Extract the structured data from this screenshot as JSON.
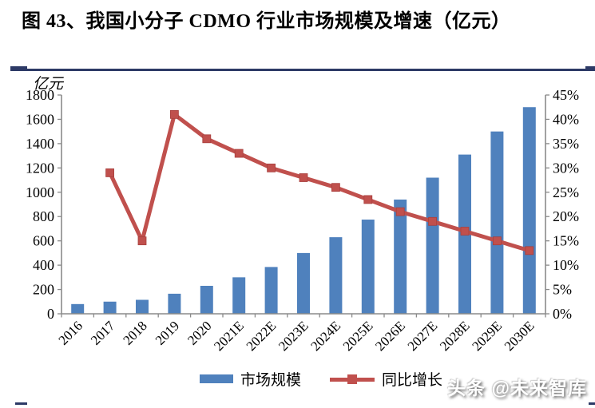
{
  "figure": {
    "title": "图 43、我国小分子 CDMO 行业市场规模及增速（亿元）"
  },
  "watermark": "头条 @未来智库",
  "colors": {
    "bar_blue": "#4F81BD",
    "line_red": "#C0504D",
    "rule_navy": "#2D3A66",
    "axis_gray": "#8A8A8A"
  },
  "chart_data": {
    "type": "bar",
    "subtype": "bar+line dual-axis combo",
    "title": "图 43、我国小分子 CDMO 行业市场规模及增速（亿元）",
    "categories": [
      "2016",
      "2017",
      "2018",
      "2019",
      "2020",
      "2021E",
      "2022E",
      "2023E",
      "2024E",
      "2025E",
      "2026E",
      "2027E",
      "2028E",
      "2029E",
      "2030E"
    ],
    "series": [
      {
        "name": "市场规模",
        "type": "bar",
        "axis": "left",
        "color": "#4F81BD",
        "values": [
          80,
          100,
          115,
          165,
          230,
          300,
          385,
          500,
          630,
          775,
          940,
          1120,
          1310,
          1500,
          1700
        ]
      },
      {
        "name": "同比增长",
        "type": "line",
        "axis": "right",
        "color": "#C0504D",
        "marker": "square",
        "values": [
          null,
          29,
          15,
          41,
          36,
          33,
          30,
          28,
          26,
          23.5,
          21,
          19,
          17,
          15,
          13
        ]
      }
    ],
    "left_axis": {
      "unit": "亿元",
      "min": 0,
      "max": 1800,
      "step": 200
    },
    "right_axis": {
      "min": 0,
      "max": 45,
      "step": 5,
      "suffix": "%"
    },
    "legend_position": "bottom",
    "grid": false
  }
}
